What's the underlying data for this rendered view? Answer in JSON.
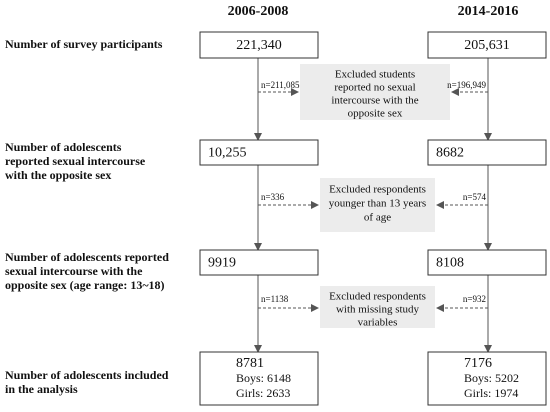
{
  "headers": [
    "2006-2008",
    "2014-2016"
  ],
  "rows": [
    {
      "label": [
        "Number of survey participants"
      ],
      "left": [
        "221,340"
      ],
      "right": [
        "205,631"
      ]
    },
    {
      "label": [
        "Number of adolescents",
        "reported sexual intercourse",
        "with the opposite sex"
      ],
      "left": [
        "10,255"
      ],
      "right": [
        "8682"
      ]
    },
    {
      "label": [
        "Number of adolescents reported",
        "sexual intercourse with the",
        "opposite sex (age range: 13~18)"
      ],
      "left": [
        "9919"
      ],
      "right": [
        "8108"
      ]
    },
    {
      "label": [
        "Number of adolescents included",
        "in the analysis"
      ],
      "left": [
        "8781",
        "Boys: 6148",
        "Girls: 2633"
      ],
      "right": [
        "7176",
        "Boys: 5202",
        "Girls: 1974"
      ]
    }
  ],
  "exclusions": [
    {
      "text": [
        "Excluded students",
        "reported no sexual",
        "intercourse with the",
        "opposite sex"
      ],
      "left_n": "n=211,085",
      "right_n": "n=196,949"
    },
    {
      "text": [
        "Excluded respondents",
        "younger than 13 years",
        "of age"
      ],
      "left_n": "n=336",
      "right_n": "n=574"
    },
    {
      "text": [
        "Excluded respondents",
        "with missing study",
        "variables"
      ],
      "left_n": "n=1138",
      "right_n": "n=932"
    }
  ]
}
